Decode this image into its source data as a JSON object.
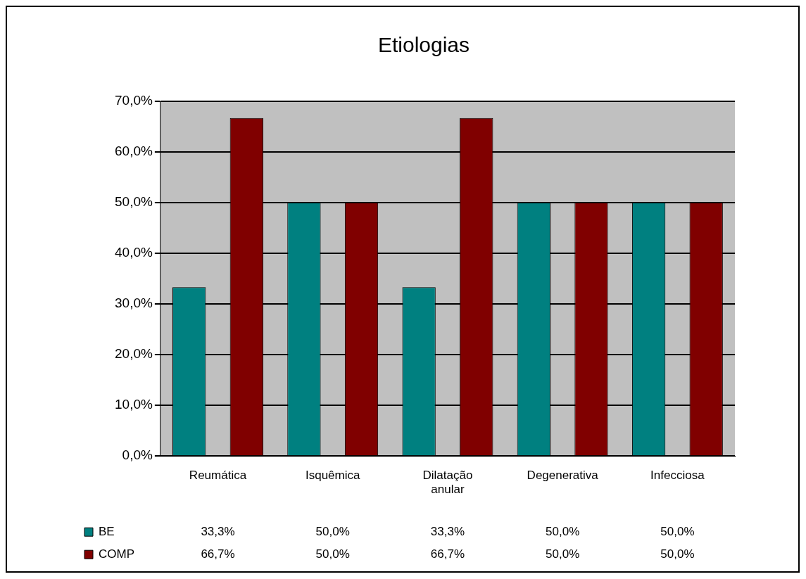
{
  "chart_data": {
    "type": "bar",
    "title": "Etiologias",
    "categories": [
      "Reumática",
      "Isquêmica",
      "Dilatação anular",
      "Degenerativa",
      "Infecciosa"
    ],
    "series": [
      {
        "name": "BE",
        "color": "#008080",
        "values": [
          33.3,
          50.0,
          33.3,
          50.0,
          50.0
        ],
        "value_labels": [
          "33,3%",
          "50,0%",
          "33,3%",
          "50,0%",
          "50,0%"
        ]
      },
      {
        "name": "COMP",
        "color": "#800000",
        "values": [
          66.7,
          50.0,
          66.7,
          50.0,
          50.0
        ],
        "value_labels": [
          "66,7%",
          "50,0%",
          "66,7%",
          "50,0%",
          "50,0%"
        ]
      }
    ],
    "ylim": [
      0,
      70
    ],
    "yticks": [
      {
        "value": 0,
        "label": "0,0%"
      },
      {
        "value": 10,
        "label": "10,0%"
      },
      {
        "value": 20,
        "label": "20,0%"
      },
      {
        "value": 30,
        "label": "30,0%"
      },
      {
        "value": 40,
        "label": "40,0%"
      },
      {
        "value": 50,
        "label": "50,0%"
      },
      {
        "value": 60,
        "label": "60,0%"
      },
      {
        "value": 70,
        "label": "70,0%"
      }
    ],
    "grid": "y",
    "legend": "bottom left"
  }
}
